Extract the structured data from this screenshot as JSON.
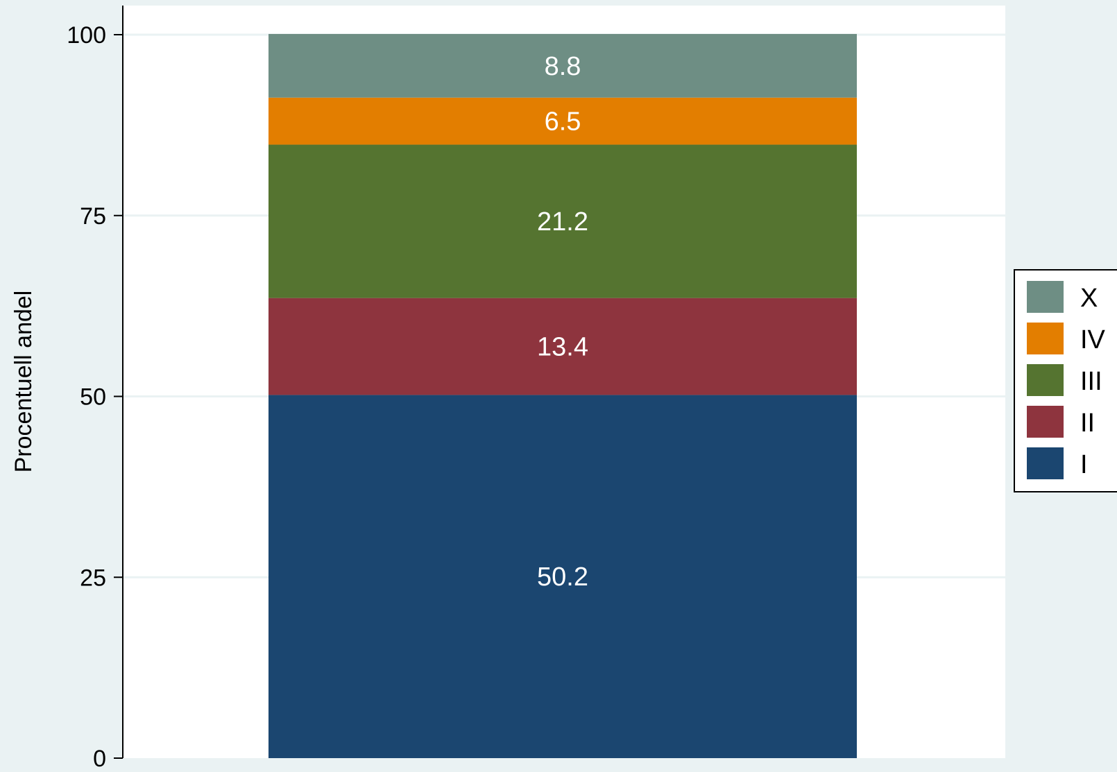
{
  "chart_data": {
    "type": "bar",
    "stacked": true,
    "title": "",
    "xlabel": "",
    "ylabel": "Procentuell andel",
    "ylim": [
      0,
      100
    ],
    "yticks": [
      0,
      25,
      50,
      75,
      100
    ],
    "grid": true,
    "legend_position": "right",
    "series": [
      {
        "name": "I",
        "value": 50.2,
        "label": "50.2",
        "color": "#1b4670"
      },
      {
        "name": "II",
        "value": 13.4,
        "label": "13.4",
        "color": "#8e343e"
      },
      {
        "name": "III",
        "value": 21.2,
        "label": "21.2",
        "color": "#557430"
      },
      {
        "name": "IV",
        "value": 6.5,
        "label": "6.5",
        "color": "#e37e00"
      },
      {
        "name": "X",
        "value": 8.8,
        "label": "8.8",
        "color": "#6e8e84"
      }
    ],
    "legend_order": [
      "X",
      "IV",
      "III",
      "II",
      "I"
    ]
  }
}
